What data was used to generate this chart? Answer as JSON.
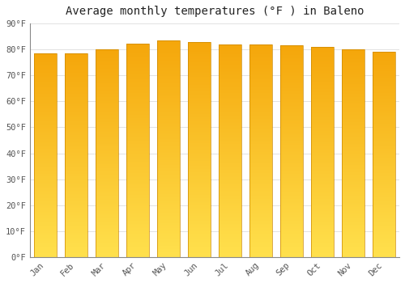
{
  "title": "Average monthly temperatures (°F ) in Baleno",
  "months": [
    "Jan",
    "Feb",
    "Mar",
    "Apr",
    "May",
    "Jun",
    "Jul",
    "Aug",
    "Sep",
    "Oct",
    "Nov",
    "Dec"
  ],
  "values": [
    78.5,
    78.5,
    80.2,
    82.2,
    83.6,
    83.0,
    82.0,
    82.0,
    81.5,
    81.0,
    80.0,
    79.0
  ],
  "bar_color_top": "#F5A800",
  "bar_color_bottom": "#FFE066",
  "background_color": "#FFFFFF",
  "grid_color": "#DDDDDD",
  "ylim": [
    0,
    90
  ],
  "yticks": [
    0,
    10,
    20,
    30,
    40,
    50,
    60,
    70,
    80,
    90
  ],
  "ytick_labels": [
    "0°F",
    "10°F",
    "20°F",
    "30°F",
    "40°F",
    "50°F",
    "60°F",
    "70°F",
    "80°F",
    "90°F"
  ],
  "title_fontsize": 10,
  "tick_fontsize": 7.5,
  "bar_width": 0.75,
  "title_color": "#222222",
  "tick_color": "#555555",
  "font_family": "monospace",
  "bar_edge_color": "#CC8800",
  "bar_edge_width": 0.5
}
